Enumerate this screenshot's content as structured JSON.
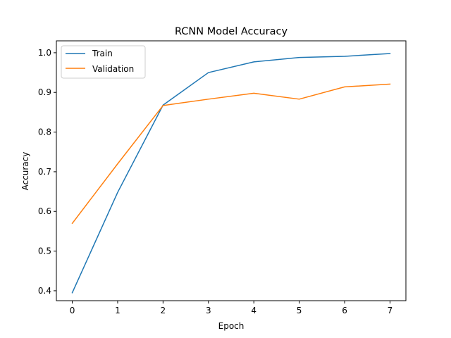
{
  "chart_data": {
    "type": "line",
    "title": "RCNN Model Accuracy",
    "xlabel": "Epoch",
    "ylabel": "Accuracy",
    "x": [
      0,
      1,
      2,
      3,
      4,
      5,
      6,
      7
    ],
    "xlim": [
      -0.35,
      7.35
    ],
    "ylim": [
      0.375,
      1.03
    ],
    "xticks": [
      "0",
      "1",
      "2",
      "3",
      "4",
      "5",
      "6",
      "7"
    ],
    "yticks": [
      "0.4",
      "0.5",
      "0.6",
      "0.7",
      "0.8",
      "0.9",
      "1.0"
    ],
    "grid": false,
    "legend_position": "top-left",
    "series": [
      {
        "name": "Train",
        "color": "#1f77b4",
        "values": [
          0.395,
          0.648,
          0.868,
          0.95,
          0.977,
          0.988,
          0.991,
          0.998
        ]
      },
      {
        "name": "Validation",
        "color": "#ff7f0e",
        "values": [
          0.57,
          0.72,
          0.867,
          0.883,
          0.898,
          0.883,
          0.914,
          0.921
        ]
      }
    ]
  }
}
